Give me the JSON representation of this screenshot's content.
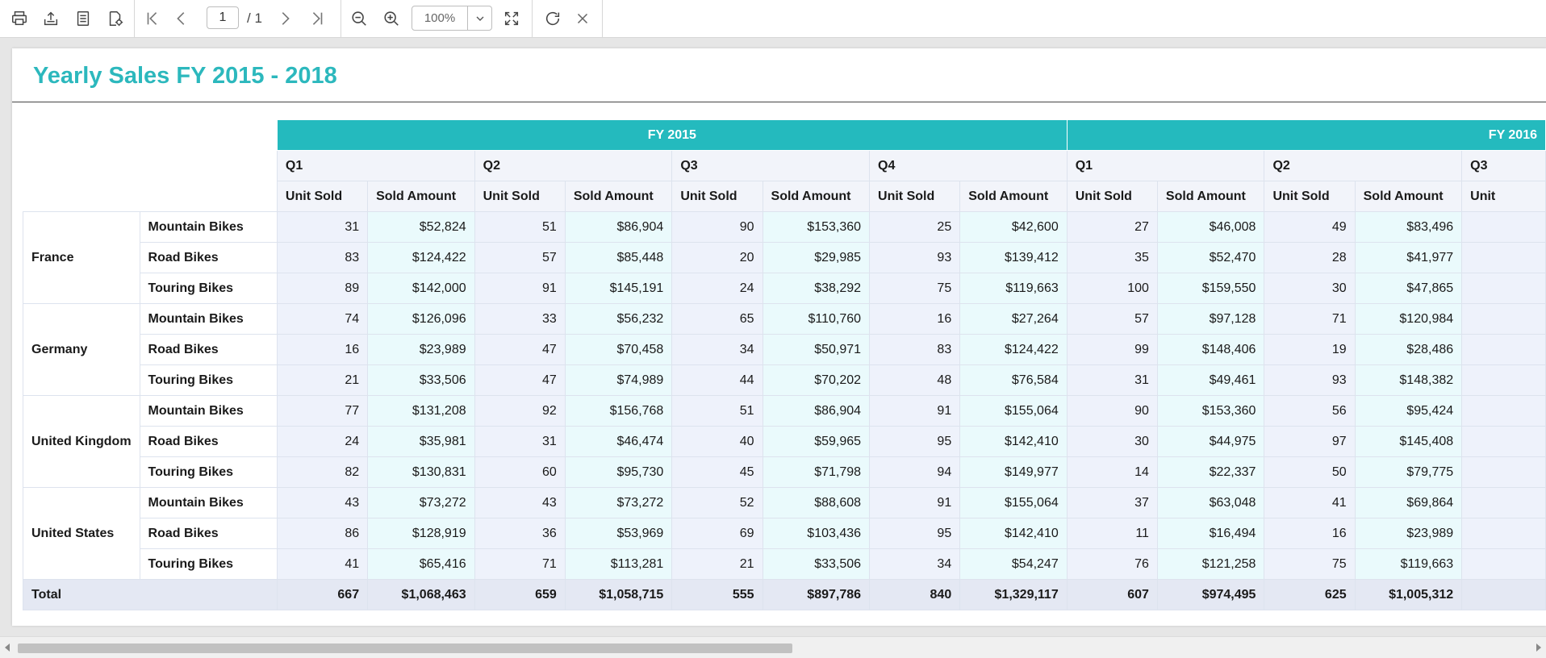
{
  "toolbar": {
    "page_number": "1",
    "page_total": "/ 1",
    "zoom": "100%",
    "icons": [
      "print-icon",
      "export-icon",
      "page-setup-icon",
      "parameters-icon",
      "first-page-icon",
      "previous-page-icon",
      "next-page-icon",
      "last-page-icon",
      "zoom-out-icon",
      "zoom-in-icon",
      "zoom-dropdown-icon",
      "fit-page-icon",
      "refresh-icon",
      "close-icon"
    ]
  },
  "report": {
    "title": "Yearly Sales FY 2015 - 2018",
    "fy_headers": [
      "FY 2015",
      "FY 2016"
    ],
    "quarters": [
      "Q1",
      "Q2",
      "Q3",
      "Q4",
      "Q1",
      "Q2",
      "Q3"
    ],
    "measures": {
      "unit": "Unit Sold",
      "amount": "Sold Amount",
      "unit_partial": "Unit"
    },
    "groups": [
      {
        "country": "France",
        "rows": [
          {
            "product": "Mountain Bikes",
            "values": [
              "31",
              "$52,824",
              "51",
              "$86,904",
              "90",
              "$153,360",
              "25",
              "$42,600",
              "27",
              "$46,008",
              "49",
              "$83,496"
            ]
          },
          {
            "product": "Road Bikes",
            "values": [
              "83",
              "$124,422",
              "57",
              "$85,448",
              "20",
              "$29,985",
              "93",
              "$139,412",
              "35",
              "$52,470",
              "28",
              "$41,977"
            ]
          },
          {
            "product": "Touring Bikes",
            "values": [
              "89",
              "$142,000",
              "91",
              "$145,191",
              "24",
              "$38,292",
              "75",
              "$119,663",
              "100",
              "$159,550",
              "30",
              "$47,865"
            ]
          }
        ]
      },
      {
        "country": "Germany",
        "rows": [
          {
            "product": "Mountain Bikes",
            "values": [
              "74",
              "$126,096",
              "33",
              "$56,232",
              "65",
              "$110,760",
              "16",
              "$27,264",
              "57",
              "$97,128",
              "71",
              "$120,984"
            ]
          },
          {
            "product": "Road Bikes",
            "values": [
              "16",
              "$23,989",
              "47",
              "$70,458",
              "34",
              "$50,971",
              "83",
              "$124,422",
              "99",
              "$148,406",
              "19",
              "$28,486"
            ]
          },
          {
            "product": "Touring Bikes",
            "values": [
              "21",
              "$33,506",
              "47",
              "$74,989",
              "44",
              "$70,202",
              "48",
              "$76,584",
              "31",
              "$49,461",
              "93",
              "$148,382"
            ]
          }
        ]
      },
      {
        "country": "United Kingdom",
        "rows": [
          {
            "product": "Mountain Bikes",
            "values": [
              "77",
              "$131,208",
              "92",
              "$156,768",
              "51",
              "$86,904",
              "91",
              "$155,064",
              "90",
              "$153,360",
              "56",
              "$95,424"
            ]
          },
          {
            "product": "Road Bikes",
            "values": [
              "24",
              "$35,981",
              "31",
              "$46,474",
              "40",
              "$59,965",
              "95",
              "$142,410",
              "30",
              "$44,975",
              "97",
              "$145,408"
            ]
          },
          {
            "product": "Touring Bikes",
            "values": [
              "82",
              "$130,831",
              "60",
              "$95,730",
              "45",
              "$71,798",
              "94",
              "$149,977",
              "14",
              "$22,337",
              "50",
              "$79,775"
            ]
          }
        ]
      },
      {
        "country": "United States",
        "rows": [
          {
            "product": "Mountain Bikes",
            "values": [
              "43",
              "$73,272",
              "43",
              "$73,272",
              "52",
              "$88,608",
              "91",
              "$155,064",
              "37",
              "$63,048",
              "41",
              "$69,864"
            ]
          },
          {
            "product": "Road Bikes",
            "values": [
              "86",
              "$128,919",
              "36",
              "$53,969",
              "69",
              "$103,436",
              "95",
              "$142,410",
              "11",
              "$16,494",
              "16",
              "$23,989"
            ]
          },
          {
            "product": "Touring Bikes",
            "values": [
              "41",
              "$65,416",
              "71",
              "$113,281",
              "21",
              "$33,506",
              "34",
              "$54,247",
              "76",
              "$121,258",
              "75",
              "$119,663"
            ]
          }
        ]
      }
    ],
    "total": {
      "label": "Total",
      "values": [
        "667",
        "$1,068,463",
        "659",
        "$1,058,715",
        "555",
        "$897,786",
        "840",
        "$1,329,117",
        "607",
        "$974,495",
        "625",
        "$1,005,312"
      ]
    }
  }
}
